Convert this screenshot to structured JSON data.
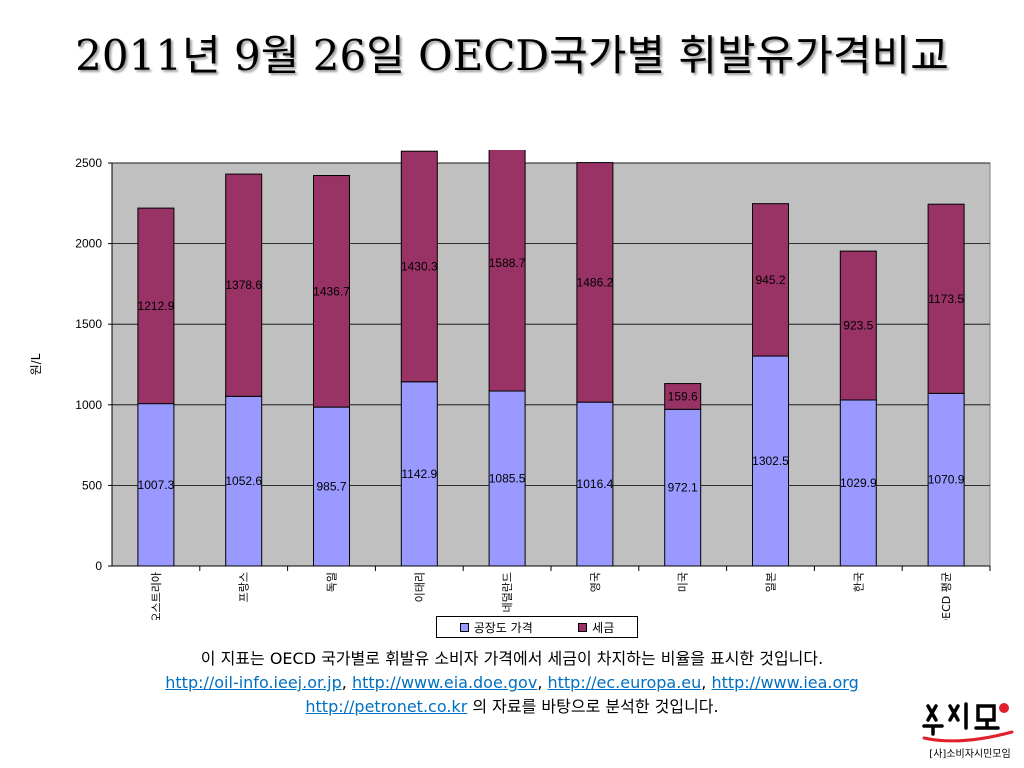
{
  "title": "2011년 9월 26일 OECD국가별 휘발유가격비교",
  "chart_data": {
    "type": "bar",
    "stacked": true,
    "categories": [
      "오스트리아",
      "프랑스",
      "독일",
      "이태리",
      "네덜란드",
      "영국",
      "미국",
      "일본",
      "한국",
      "OECD 평균"
    ],
    "series": [
      {
        "name": "공장도 가격",
        "color": "#9999ff",
        "values": [
          1007.3,
          1052.6,
          985.7,
          1142.9,
          1085.5,
          1016.4,
          972.1,
          1302.5,
          1029.9,
          1070.9
        ]
      },
      {
        "name": "세금",
        "color": "#993366",
        "values": [
          1212.9,
          1378.6,
          1436.7,
          1430.3,
          1588.7,
          1486.2,
          159.6,
          945.2,
          923.5,
          1173.5
        ]
      }
    ],
    "ylabel": "원/L",
    "ylim": [
      0,
      2500
    ],
    "yticks": [
      0,
      500,
      1000,
      1500,
      2000,
      2500
    ],
    "grid": true,
    "legend": "bottom",
    "plot_background": "#c0c0c0"
  },
  "caption": {
    "line1": "이 지표는 OECD 국가별로 휘발유 소비자 가격에서 세금이 차지하는 비율을 표시한 것입니다.",
    "links1": [
      "http://oil-info.ieej.or.jp",
      "http://www.eia.doe.gov",
      "http://ec.europa.eu",
      "http://www.iea.org"
    ],
    "link2": "http://petronet.co.kr",
    "line3_suffix": " 의 자료를 바탕으로 분석한 것입니다.",
    "separator": ", "
  },
  "logo": {
    "mark": "소시모",
    "text": "[사]소비자시민모임"
  }
}
